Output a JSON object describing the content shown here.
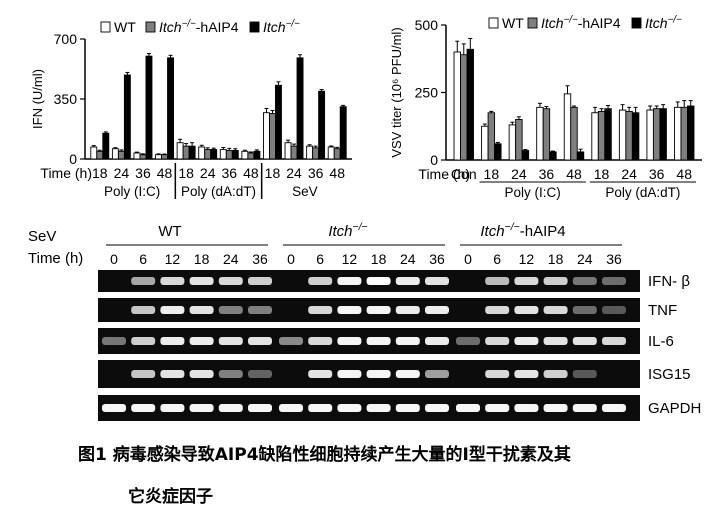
{
  "caption": {
    "line1": "图1  病毒感染导致AIP4缺陷性细胞持续产生大量的I型干扰素及其",
    "line2": "它炎症因子"
  },
  "colors": {
    "wt": "#ffffff",
    "hAIP4": "#7f7f7f",
    "itch": "#000000"
  },
  "chart_data": [
    {
      "type": "bar",
      "panel": "left",
      "ylabel": "IFN (U/ml)",
      "ylim": [
        0,
        700
      ],
      "yticks": [
        0,
        350,
        700
      ],
      "xlabel": "Time (h)",
      "legend": [
        "WT",
        "Itch−/−-hAIP4",
        "Itch−/−"
      ],
      "categories": [
        "18",
        "24",
        "36",
        "48",
        "18",
        "24",
        "36",
        "48",
        "18",
        "24",
        "36",
        "48"
      ],
      "groups": [
        {
          "label": "Poly (I:C)",
          "from": 0,
          "to": 3
        },
        {
          "label": "Poly (dA:dT)",
          "from": 4,
          "to": 7
        },
        {
          "label": "SeV",
          "from": 8,
          "to": 11
        }
      ],
      "series": [
        {
          "name": "WT",
          "values": [
            70,
            60,
            35,
            25,
            95,
            70,
            55,
            45,
            270,
            95,
            75,
            70
          ],
          "errors": [
            8,
            6,
            5,
            5,
            20,
            10,
            12,
            6,
            25,
            15,
            8,
            6
          ]
        },
        {
          "name": "Itch−/−-hAIP4",
          "values": [
            45,
            45,
            25,
            25,
            75,
            55,
            50,
            35,
            265,
            75,
            65,
            60
          ],
          "errors": [
            6,
            8,
            5,
            4,
            15,
            10,
            12,
            6,
            18,
            12,
            10,
            8
          ]
        },
        {
          "name": "Itch−/−",
          "values": [
            150,
            490,
            600,
            590,
            75,
            55,
            50,
            45,
            430,
            590,
            395,
            305
          ],
          "errors": [
            8,
            15,
            15,
            15,
            20,
            8,
            10,
            8,
            20,
            18,
            10,
            8
          ]
        }
      ]
    },
    {
      "type": "bar",
      "panel": "right",
      "ylabel": "VSV titer (10⁶ PFU/ml)",
      "ylim": [
        0,
        500
      ],
      "yticks": [
        0,
        250,
        500
      ],
      "xlabel": "Time (h)",
      "legend": [
        "WT",
        "Itch−/−-hAIP4",
        "Itch−/−"
      ],
      "categories": [
        "Con",
        "18",
        "24",
        "36",
        "48",
        "18",
        "24",
        "36",
        "48"
      ],
      "groups": [
        {
          "label": "Poly (I:C)",
          "from": 1,
          "to": 4
        },
        {
          "label": "Poly (dA:dT)",
          "from": 5,
          "to": 8
        }
      ],
      "series": [
        {
          "name": "WT",
          "values": [
            400,
            125,
            130,
            195,
            245,
            175,
            185,
            185,
            195
          ],
          "errors": [
            40,
            8,
            10,
            15,
            30,
            20,
            20,
            15,
            20
          ]
        },
        {
          "name": "Itch−/−-hAIP4",
          "values": [
            390,
            175,
            150,
            190,
            195,
            180,
            180,
            190,
            195
          ],
          "errors": [
            40,
            5,
            10,
            8,
            5,
            10,
            15,
            10,
            25
          ]
        },
        {
          "name": "Itch−/−",
          "values": [
            410,
            60,
            35,
            30,
            30,
            190,
            175,
            190,
            200
          ],
          "errors": [
            40,
            5,
            4,
            3,
            10,
            12,
            20,
            15,
            20
          ]
        }
      ]
    },
    {
      "type": "gel",
      "panel": "bottom",
      "stimulus_label": "SeV",
      "time_label": "Time (h)",
      "time_points": [
        "0",
        "6",
        "12",
        "18",
        "24",
        "36"
      ],
      "groups": [
        "WT",
        "Itch−/−",
        "Itch−/−-hAIP4"
      ],
      "rows": [
        {
          "name": "IFN- β",
          "intensity": [
            [
              0.05,
              0.55,
              0.8,
              0.85,
              0.8,
              0.75
            ],
            [
              0.05,
              0.75,
              0.95,
              1.0,
              0.9,
              0.85
            ],
            [
              0.05,
              0.65,
              0.8,
              0.75,
              0.3,
              0.25
            ]
          ]
        },
        {
          "name": "TNF",
          "intensity": [
            [
              0.05,
              0.7,
              0.9,
              0.85,
              0.35,
              0.35
            ],
            [
              0.05,
              0.8,
              0.95,
              0.95,
              0.9,
              0.9
            ],
            [
              0.05,
              0.8,
              0.85,
              0.8,
              0.25,
              0.15
            ]
          ]
        },
        {
          "name": "IL-6",
          "intensity": [
            [
              0.3,
              0.75,
              0.9,
              0.9,
              0.85,
              0.85
            ],
            [
              0.4,
              0.8,
              0.95,
              0.95,
              0.95,
              0.9
            ],
            [
              0.25,
              0.8,
              0.9,
              0.85,
              0.85,
              0.8
            ]
          ]
        },
        {
          "name": "ISG15",
          "intensity": [
            [
              0.05,
              0.7,
              0.85,
              0.85,
              0.35,
              0.2
            ],
            [
              0.05,
              0.85,
              0.95,
              0.95,
              0.95,
              0.5
            ],
            [
              0.05,
              0.8,
              0.85,
              0.75,
              0.15,
              0.05
            ]
          ]
        },
        {
          "name": "GAPDH",
          "intensity": [
            [
              0.95,
              0.95,
              0.95,
              0.95,
              0.95,
              0.95
            ],
            [
              0.95,
              0.95,
              0.95,
              0.95,
              0.95,
              0.95
            ],
            [
              0.95,
              0.95,
              0.95,
              0.95,
              0.95,
              0.95
            ]
          ]
        }
      ]
    }
  ]
}
